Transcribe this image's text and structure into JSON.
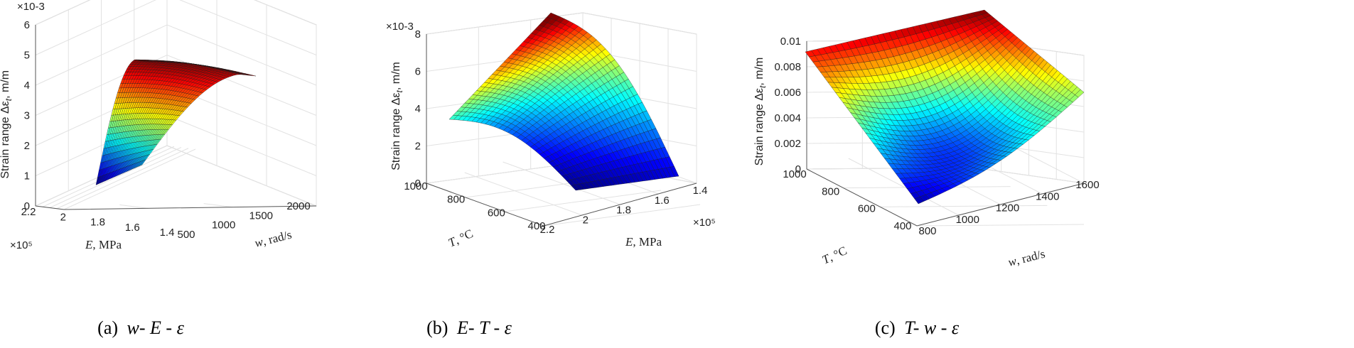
{
  "chart_data": [
    {
      "type": "surface",
      "caption": {
        "label": "(a)",
        "vars": "w- E - ε"
      },
      "zlabel": {
        "main": "Strain range Δε",
        "sub": "t",
        "unit": ", m/m"
      },
      "z_exponent": "×10-3",
      "zlim": [
        0,
        6
      ],
      "zticks": [
        "0",
        "1",
        "2",
        "3",
        "4",
        "5",
        "6"
      ],
      "x_axis": {
        "label_var": "E",
        "label_unit": ", MPa",
        "ticks": [
          "2.2",
          "2",
          "1.8",
          "1.6",
          "1.4"
        ],
        "exponent": "×10⁵",
        "range": [
          2.2,
          1.4
        ]
      },
      "y_axis": {
        "label_var": "w",
        "label_unit": ", rad/s",
        "ticks": [
          "500",
          "1000",
          "1500",
          "2000"
        ],
        "range": [
          500,
          2000
        ]
      },
      "surface_corners": {
        "front_left": 0.8,
        "front_right": 2.0,
        "back_left": 5.0,
        "back_right": 4.8,
        "peak": 5.1
      },
      "colormap": "jet"
    },
    {
      "type": "surface",
      "caption": {
        "label": "(b)",
        "vars": "E- T - ε"
      },
      "zlabel": {
        "main": "Strain range Δε",
        "sub": "t",
        "unit": ", m/m"
      },
      "z_exponent": "×10-3",
      "zlim": [
        0,
        8
      ],
      "zticks": [
        "0",
        "2",
        "4",
        "6",
        "8"
      ],
      "x_axis": {
        "label_var": "T",
        "label_unit": ", °C",
        "ticks": [
          "1000",
          "800",
          "600",
          "400"
        ],
        "range": [
          1000,
          400
        ]
      },
      "y_axis": {
        "label_var": "E",
        "label_unit": ", MPa",
        "ticks": [
          "2.2",
          "2",
          "1.8",
          "1.6",
          "1.4"
        ],
        "exponent": "×10⁵",
        "range": [
          2.2,
          1.4
        ]
      },
      "surface_corners": {
        "left": 3.3,
        "back": 9.0,
        "front": 0.7,
        "right": 0.6
      },
      "colormap": "jet"
    },
    {
      "type": "surface",
      "caption": {
        "label": "(c)",
        "vars": "T- w - ε"
      },
      "zlabel": {
        "main": "Strain range Δε",
        "sub": "t",
        "unit": ", m/m"
      },
      "zlim": [
        0,
        0.01
      ],
      "zticks": [
        "0",
        "0.002",
        "0.004",
        "0.006",
        "0.008",
        "0.01"
      ],
      "x_axis": {
        "label_var": "T",
        "label_unit": ", °C",
        "ticks": [
          "1000",
          "800",
          "600",
          "400"
        ],
        "range": [
          1000,
          400
        ]
      },
      "y_axis": {
        "label_var": "w",
        "label_unit": ", rad/s",
        "ticks": [
          "800",
          "1000",
          "1200",
          "1400",
          "1600"
        ],
        "range": [
          800,
          1600
        ]
      },
      "surface_corners": {
        "left": 0.0091,
        "back": 0.0104,
        "front": 0.0004,
        "right": 0.0056
      },
      "colormap": "jet"
    }
  ]
}
